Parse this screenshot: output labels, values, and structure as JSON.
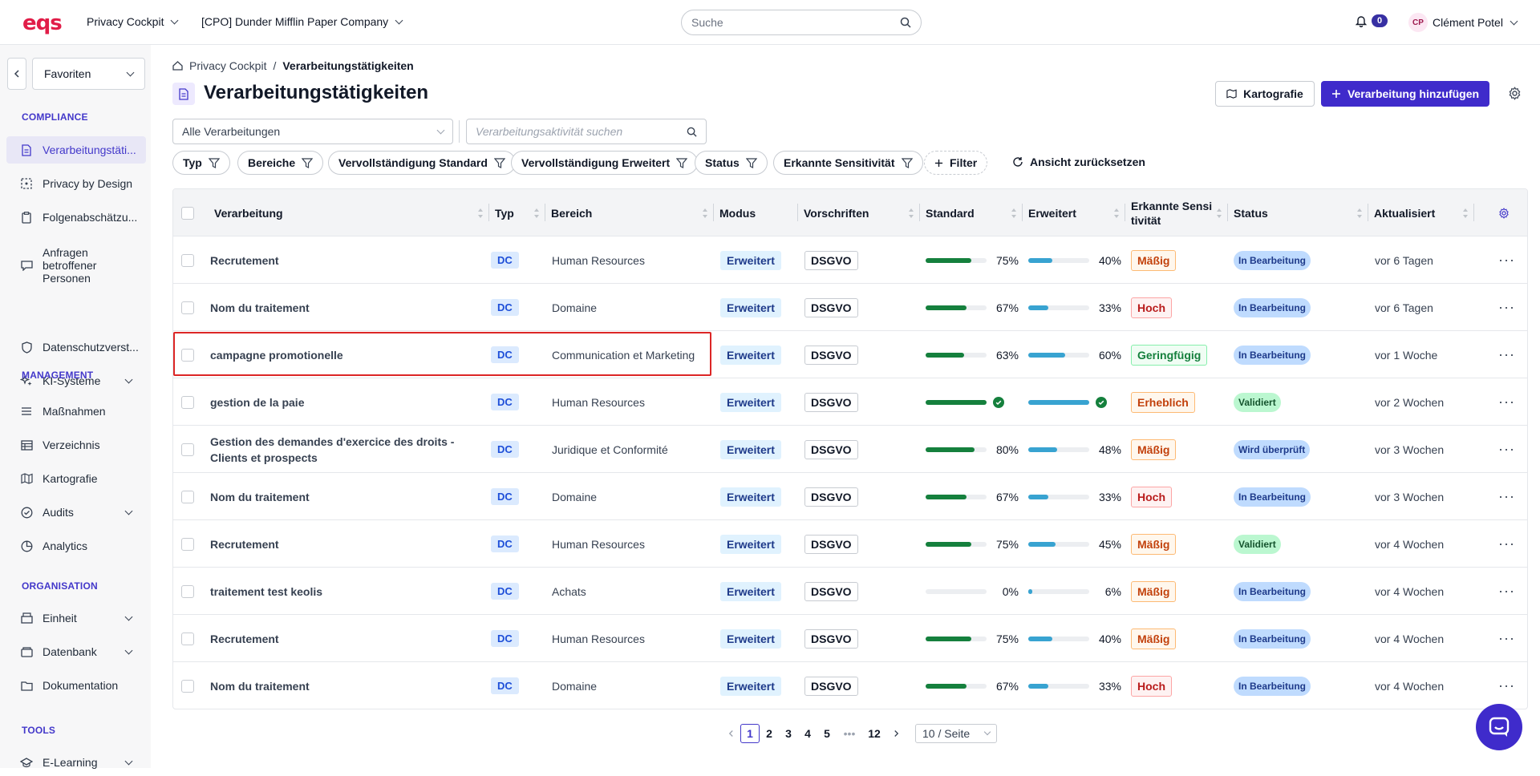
{
  "app": {
    "logo": "eqs",
    "workspace": "Privacy Cockpit",
    "company": "[CPO] Dunder Mifflin Paper Company"
  },
  "top_search": {
    "placeholder": "Suche"
  },
  "notifications": {
    "count": "0"
  },
  "user": {
    "initials": "CP",
    "name": "Clément Potel"
  },
  "sidebar": {
    "favorites": "Favoriten",
    "sections": {
      "compliance": "COMPLIANCE",
      "management": "MANAGEMENT",
      "organisation": "ORGANISATION",
      "tools": "TOOLS"
    },
    "items": [
      {
        "label": "Verarbeitungstäti...",
        "icon": "document-icon"
      },
      {
        "label": "Privacy by Design",
        "icon": "dashed-square-icon"
      },
      {
        "label": "Folgenabschätzu...",
        "icon": "clipboard-icon"
      },
      {
        "label": "Anfragen\nbetroffener\nPersonen",
        "icon": "chat-icon"
      },
      {
        "label": "Datenschutzverst...",
        "icon": "shield-icon"
      },
      {
        "label": "KI-Systeme",
        "icon": "sparkle-icon"
      },
      {
        "label": "Maßnahmen",
        "icon": "list-icon"
      },
      {
        "label": "Verzeichnis",
        "icon": "table-icon"
      },
      {
        "label": "Kartografie",
        "icon": "map-icon"
      },
      {
        "label": "Audits",
        "icon": "check-circle-icon"
      },
      {
        "label": "Analytics",
        "icon": "pie-chart-icon"
      },
      {
        "label": "Einheit",
        "icon": "building-icon"
      },
      {
        "label": "Datenbank",
        "icon": "database-icon"
      },
      {
        "label": "Dokumentation",
        "icon": "folder-icon"
      },
      {
        "label": "E-Learning",
        "icon": "graduation-icon"
      }
    ]
  },
  "breadcrumb": {
    "root": "Privacy Cockpit",
    "separator": "/",
    "current": "Verarbeitungstätigkeiten"
  },
  "page": {
    "title": "Verarbeitungstätigkeiten",
    "map_button": "Kartografie",
    "add_button": "Verarbeitung hinzufügen"
  },
  "filters": {
    "scope_select": "Alle Verarbeitungen",
    "search_placeholder": "Verarbeitungsaktivität suchen",
    "chips": [
      "Typ",
      "Bereiche",
      "Vervollständigung Standard",
      "Vervollständigung Erweitert",
      "Status",
      "Erkannte Sensitivität"
    ],
    "add_filter": "Filter",
    "reset": "Ansicht zurücksetzen"
  },
  "table": {
    "columns": [
      "Verarbeitung",
      "Typ",
      "Bereich",
      "Modus",
      "Vorschriften",
      "Standard",
      "Erweitert",
      "Erkannte Sensi\ntivität",
      "Status",
      "Aktualisiert"
    ],
    "rows": [
      {
        "name": "Recrutement",
        "type": "DC",
        "area": "Human Resources",
        "mode": "Erweitert",
        "reg": "DSGVO",
        "std": 75,
        "std_label": "75%",
        "ext": 40,
        "ext_label": "40%",
        "sens": "Mäßig",
        "status": "In Bearbeitung",
        "updated": "vor 6 Tagen"
      },
      {
        "name": "Nom du traitement",
        "type": "DC",
        "area": "Domaine",
        "mode": "Erweitert",
        "reg": "DSGVO",
        "std": 67,
        "std_label": "67%",
        "ext": 33,
        "ext_label": "33%",
        "sens": "Hoch",
        "status": "In Bearbeitung",
        "updated": "vor 6 Tagen"
      },
      {
        "name": "campagne promotionelle",
        "type": "DC",
        "area": "Communication et Marketing",
        "mode": "Erweitert",
        "reg": "DSGVO",
        "std": 63,
        "std_label": "63%",
        "ext": 60,
        "ext_label": "60%",
        "sens": "Geringfügig",
        "status": "In Bearbeitung",
        "updated": "vor 1 Woche"
      },
      {
        "name": "gestion de la paie",
        "type": "DC",
        "area": "Human Resources",
        "mode": "Erweitert",
        "reg": "DSGVO",
        "std": 100,
        "std_label": "",
        "ext": 100,
        "ext_label": "",
        "sens": "Erheblich",
        "status": "Validiert",
        "updated": "vor 2 Wochen"
      },
      {
        "name": "Gestion des demandes d'exercice des droits - Clients et prospects",
        "type": "DC",
        "area": "Juridique et Conformité",
        "mode": "Erweitert",
        "reg": "DSGVO",
        "std": 80,
        "std_label": "80%",
        "ext": 48,
        "ext_label": "48%",
        "sens": "Mäßig",
        "status": "Wird überprüft",
        "updated": "vor 3 Wochen"
      },
      {
        "name": "Nom du traitement",
        "type": "DC",
        "area": "Domaine",
        "mode": "Erweitert",
        "reg": "DSGVO",
        "std": 67,
        "std_label": "67%",
        "ext": 33,
        "ext_label": "33%",
        "sens": "Hoch",
        "status": "In Bearbeitung",
        "updated": "vor 3 Wochen"
      },
      {
        "name": "Recrutement",
        "type": "DC",
        "area": "Human Resources",
        "mode": "Erweitert",
        "reg": "DSGVO",
        "std": 75,
        "std_label": "75%",
        "ext": 45,
        "ext_label": "45%",
        "sens": "Mäßig",
        "status": "Validiert",
        "updated": "vor 4 Wochen"
      },
      {
        "name": "traitement test keolis",
        "type": "DC",
        "area": "Achats",
        "mode": "Erweitert",
        "reg": "DSGVO",
        "std": 0,
        "std_label": "0%",
        "ext": 6,
        "ext_label": "6%",
        "sens": "Mäßig",
        "status": "In Bearbeitung",
        "updated": "vor 4 Wochen"
      },
      {
        "name": "Recrutement",
        "type": "DC",
        "area": "Human Resources",
        "mode": "Erweitert",
        "reg": "DSGVO",
        "std": 75,
        "std_label": "75%",
        "ext": 40,
        "ext_label": "40%",
        "sens": "Mäßig",
        "status": "In Bearbeitung",
        "updated": "vor 4 Wochen"
      },
      {
        "name": "Nom du traitement",
        "type": "DC",
        "area": "Domaine",
        "mode": "Erweitert",
        "reg": "DSGVO",
        "std": 67,
        "std_label": "67%",
        "ext": 33,
        "ext_label": "33%",
        "sens": "Hoch",
        "status": "In Bearbeitung",
        "updated": "vor 4 Wochen"
      }
    ]
  },
  "sensitivity_colors": {
    "Mäßig": {
      "fg": "#c2410c",
      "bg": "#fff7ed",
      "border": "#fdba74"
    },
    "Hoch": {
      "fg": "#b91c1c",
      "bg": "#fef2f2",
      "border": "#fca5a5"
    },
    "Geringfügig": {
      "fg": "#15803d",
      "bg": "#f0fdf4",
      "border": "#86efac"
    },
    "Erheblich": {
      "fg": "#c2410c",
      "bg": "#fff7ed",
      "border": "#fdba74"
    }
  },
  "status_colors": {
    "In Bearbeitung": {
      "fg": "#1e3a8a",
      "bg": "#bfdbfe"
    },
    "Validiert": {
      "fg": "#14532d",
      "bg": "#bbf7d0"
    },
    "Wird überprüft": {
      "fg": "#1e3a8a",
      "bg": "#bfdbfe"
    }
  },
  "pagination": {
    "pages": [
      "1",
      "2",
      "3",
      "4",
      "5"
    ],
    "ellipsis": "•••",
    "last": "12",
    "current": "1",
    "page_size": "10 / Seite"
  },
  "colors": {
    "accent": "#3f2bcb",
    "standard_bar": "#15803d",
    "extended_bar": "#38a3d1"
  }
}
